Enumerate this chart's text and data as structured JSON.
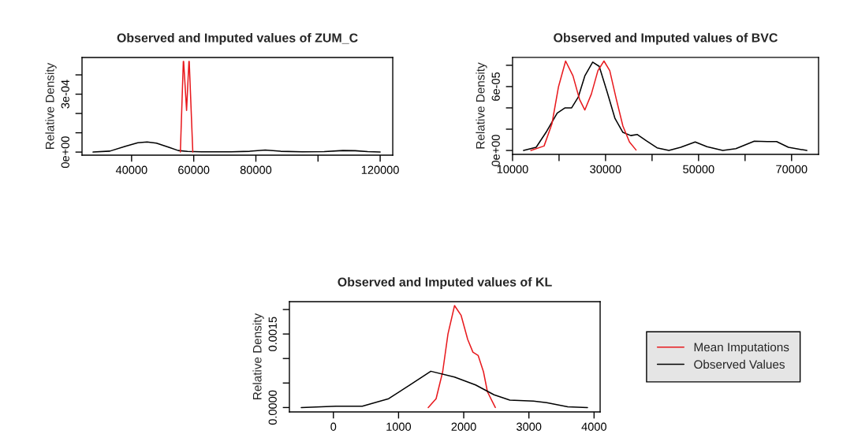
{
  "chart_data": [
    {
      "type": "line",
      "title": "Observed and Imputed values of ZUM_C",
      "ylabel": "Relative Density",
      "xlim": [
        24050,
        124050
      ],
      "ylim": [
        -1.6e-05,
        0.00049
      ],
      "xticks": [
        40000,
        60000,
        80000,
        {
          "value": 100000,
          "label": null
        },
        120000
      ],
      "yticks": [
        {
          "value": 0,
          "label": "0e+00"
        },
        {
          "value": 0.0001,
          "label": null
        },
        {
          "value": 0.0002,
          "label": null
        },
        {
          "value": 0.0003,
          "label": "3e-04"
        },
        {
          "value": 0.0004,
          "label": null
        }
      ],
      "series": [
        {
          "color": "#000000",
          "x": [
            27600,
            33000,
            38000,
            42000,
            45000,
            48000,
            52000,
            55000,
            58000,
            65000,
            72000,
            78000,
            83000,
            88000,
            95000,
            102000,
            108000,
            112000,
            116000,
            120000
          ],
          "values": [
            0,
            5e-06,
            3e-05,
            4.8e-05,
            5.2e-05,
            4.6e-05,
            2.5e-05,
            8e-06,
            3e-06,
            1e-06,
            1e-06,
            4e-06,
            1.1e-05,
            4e-06,
            1e-06,
            2e-06,
            8e-06,
            7e-06,
            2e-06,
            0
          ]
        },
        {
          "color": "#e8191d",
          "x": [
            55700,
            56650,
            56700,
            56750,
            57700,
            58450,
            58500,
            58550,
            59700
          ],
          "values": [
            0,
            0.00047,
            null,
            0.00047,
            0.000216,
            0.00047,
            null,
            0.00047,
            0
          ]
        }
      ]
    },
    {
      "type": "line",
      "title": "Observed and Imputed values of BVC",
      "ylabel": "Relative Density",
      "xlim": [
        10000,
        75800
      ],
      "ylim": [
        -3.7e-06,
        8.74e-05
      ],
      "xticks": [
        10000,
        {
          "value": 20000,
          "label": null
        },
        30000,
        {
          "value": 40000,
          "label": null
        },
        50000,
        {
          "value": 60000,
          "label": null
        },
        70000
      ],
      "yticks": [
        {
          "value": 0,
          "label": "0e+00"
        },
        {
          "value": 2e-05,
          "label": null
        },
        {
          "value": 4e-05,
          "label": null
        },
        {
          "value": 6e-05,
          "label": "6e-05"
        },
        {
          "value": 8e-05,
          "label": null
        }
      ],
      "series": [
        {
          "color": "#000000",
          "x": [
            12370,
            15080,
            17340,
            19600,
            21300,
            22710,
            24120,
            25540,
            27230,
            28640,
            30340,
            32030,
            33730,
            35420,
            36840,
            38810,
            41070,
            43620,
            46160,
            49270,
            51810,
            55200,
            58020,
            61980,
            64800,
            66780,
            69320,
            73280
          ],
          "values": [
            0,
            3e-06,
            1.8e-05,
            3.5e-05,
            4e-05,
            4e-05,
            5e-05,
            7e-05,
            8.3e-05,
            7.9e-05,
            5.5e-05,
            3e-05,
            1.7e-05,
            1.4e-05,
            1.5e-05,
            9e-06,
            2.5e-06,
            0,
            3e-06,
            8e-06,
            3.5e-06,
            0,
            1.7e-06,
            8.7e-06,
            8.4e-06,
            8.4e-06,
            3e-06,
            0
          ]
        },
        {
          "color": "#e8191d",
          "x": [
            13950,
            16780,
            18470,
            19890,
            21410,
            23000,
            24400,
            25540,
            26950,
            28360,
            29660,
            30900,
            32320,
            33730,
            35140,
            36550
          ],
          "values": [
            0,
            4.2e-06,
            2.5e-05,
            6e-05,
            8.4e-05,
            7e-05,
            4.8e-05,
            3.8e-05,
            5.3e-05,
            7.5e-05,
            8.4e-05,
            7.5e-05,
            4.8e-05,
            2.3e-05,
            8e-06,
            5e-07
          ]
        }
      ]
    },
    {
      "type": "line",
      "title": "Observed and Imputed values of KL",
      "ylabel": "Relative Density",
      "legend": "right",
      "xlim": [
        -675,
        4093
      ],
      "ylim": [
        -9e-05,
        0.00216
      ],
      "xticks": [
        0,
        1000,
        2000,
        3000,
        4000
      ],
      "yticks": [
        {
          "value": 0,
          "label": "0.0000"
        },
        {
          "value": 0.0005,
          "label": null
        },
        {
          "value": 0.001,
          "label": null
        },
        {
          "value": 0.0015,
          "label": "0.0015"
        },
        {
          "value": 0.002,
          "label": null
        }
      ],
      "series": [
        {
          "name": "Mean Imputations",
          "color": "#e8191d",
          "x": [
            1455,
            1576,
            1677,
            1758,
            1859,
            1960,
            2061,
            2141,
            2222,
            2303,
            2364,
            2485
          ],
          "values": [
            0,
            0.00018,
            0.00073,
            0.0015,
            0.00208,
            0.00188,
            0.00139,
            0.00113,
            0.00106,
            0.00073,
            0.00032,
            0
          ]
        },
        {
          "name": "Observed Values",
          "color": "#000000",
          "x": [
            -493,
            40,
            444,
            848,
            1172,
            1495,
            1859,
            2182,
            2465,
            2707,
            3071,
            3273,
            3596,
            3899
          ],
          "values": [
            0,
            2.7e-05,
            2.7e-05,
            0.00018,
            0.00046,
            0.00074,
            0.00062,
            0.00046,
            0.00026,
            0.00015,
            0.00013,
            9.9e-05,
            1.6e-05,
            0
          ]
        }
      ]
    }
  ]
}
